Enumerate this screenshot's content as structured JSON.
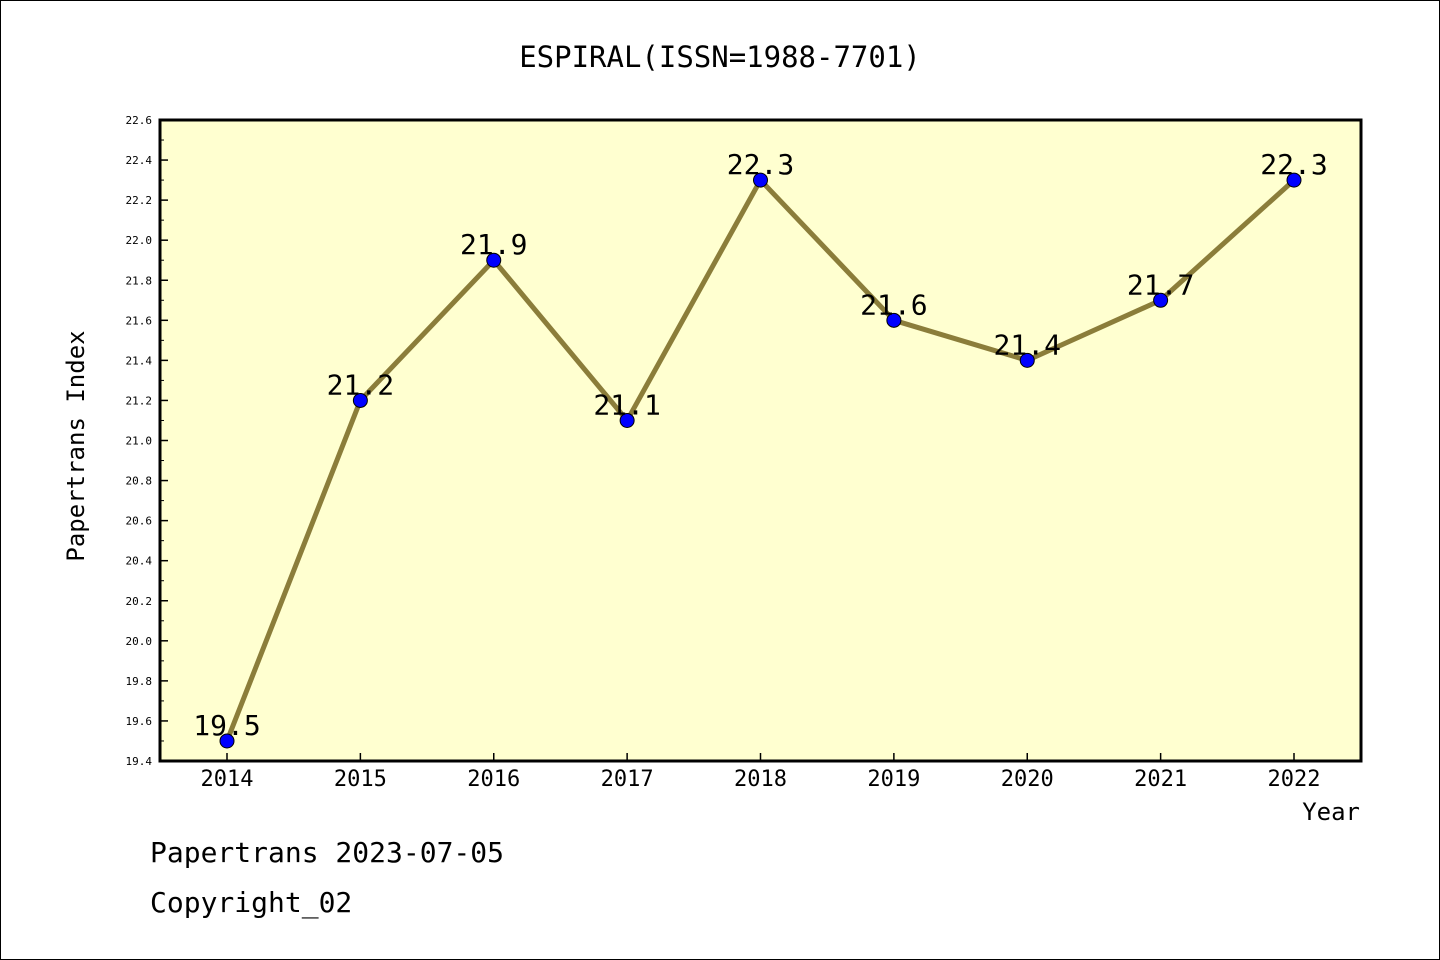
{
  "chart_data": {
    "type": "line",
    "title": "ESPIRAL(ISSN=1988-7701)",
    "xlabel": "Year",
    "ylabel": "Papertrans Index",
    "x": [
      "2014",
      "2015",
      "2016",
      "2017",
      "2018",
      "2019",
      "2020",
      "2021",
      "2022"
    ],
    "series": [
      {
        "values": [
          19.5,
          21.2,
          21.9,
          21.1,
          22.3,
          21.6,
          21.4,
          21.7,
          22.3
        ]
      }
    ],
    "data_labels": [
      "19.5",
      "21.2",
      "21.9",
      "21.1",
      "22.3",
      "21.6",
      "21.4",
      "21.7",
      "22.3"
    ],
    "ylim": [
      19.4,
      22.6
    ],
    "yticks": [
      "19.4",
      "19.6",
      "19.8",
      "20.0",
      "20.2",
      "20.4",
      "20.6",
      "20.8",
      "21.0",
      "21.2",
      "21.4",
      "21.6",
      "21.8",
      "22.0",
      "22.2",
      "22.4",
      "22.6"
    ],
    "grid": false,
    "colors": {
      "plot_background": "#ffffd0",
      "line": "#8b7d3a",
      "marker": "#0000ff"
    }
  },
  "footer": {
    "date_line": "Papertrans 2023-07-05",
    "copyright": "Copyright_02"
  }
}
